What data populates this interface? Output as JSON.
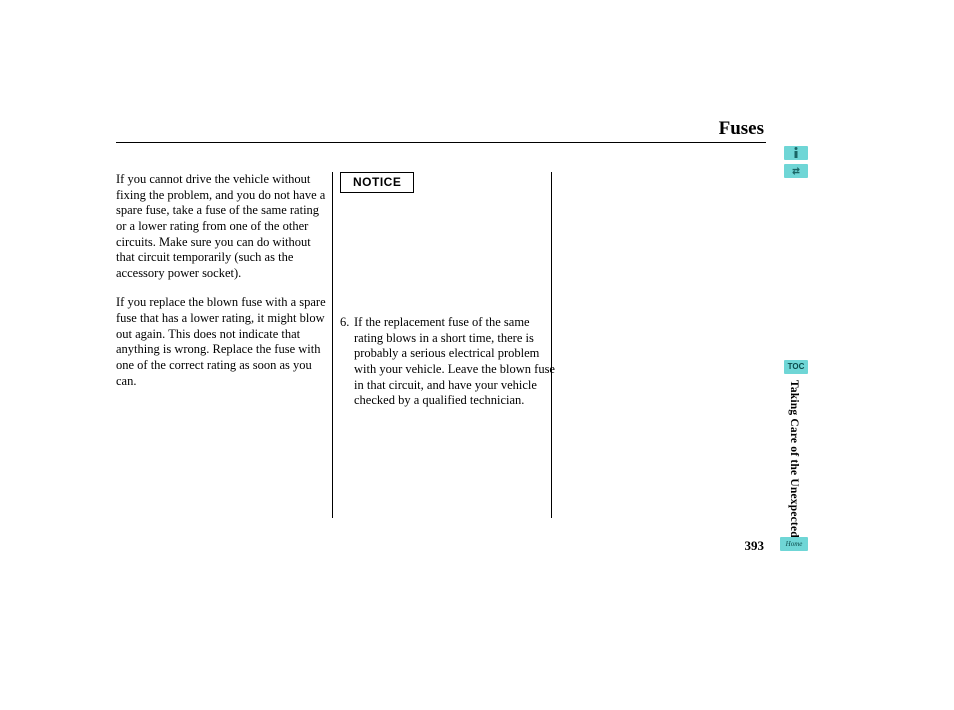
{
  "header": {
    "title": "Fuses"
  },
  "columns": {
    "left": {
      "para1": "If you cannot drive the vehicle without fixing the problem, and you do not have a spare fuse, take a fuse of the same rating or a lower rating from one of the other circuits. Make sure you can do without that circuit temporarily (such as the accessory power socket).",
      "para2": "If you replace the blown fuse with a spare fuse that has a lower rating, it might blow out again. This does not indicate that anything is wrong. Replace the fuse with one of the correct rating as soon as you can."
    },
    "middle": {
      "notice_label": "NOTICE",
      "step_number": "6.",
      "step_text": "If the replacement fuse of the same rating blows in a short time, there is probably a serious electrical problem with your vehicle. Leave the blown fuse in that circuit, and have your vehicle checked by a qualified technician."
    }
  },
  "side": {
    "toc_label": "TOC",
    "section_label": "Taking Care of the Unexpected",
    "home_label": "Home",
    "arrows_glyph": "⇄"
  },
  "footer": {
    "page_number": "393"
  },
  "colors": {
    "accent": "#6fd6d6",
    "text": "#000000",
    "background": "#ffffff"
  }
}
